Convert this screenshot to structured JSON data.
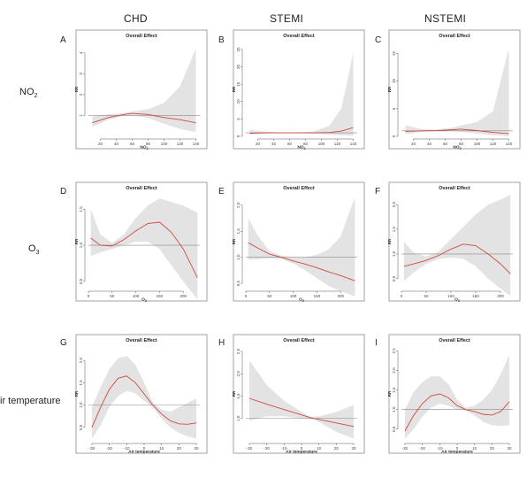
{
  "columns": [
    "CHD",
    "STEMI",
    "NSTEMI"
  ],
  "rows": [
    {
      "label": "NO",
      "sub": "2"
    },
    {
      "label": "O",
      "sub": "3"
    },
    {
      "label": "ir temperature",
      "sub": ""
    }
  ],
  "colors": {
    "estimate": "#d0493f",
    "band": "#e3e3e3",
    "reference": "#8a8a8a"
  },
  "chart_data": [
    {
      "type": "line",
      "letter": "A",
      "title": "Overall Effect",
      "xlabel": "NO",
      "xlabel_sub": "2",
      "ylabel": "RR",
      "xlim": [
        5,
        145
      ],
      "ylim": [
        0,
        4.5
      ],
      "xticks": [
        20,
        40,
        60,
        80,
        100,
        120,
        140
      ],
      "yticks": [
        1,
        2,
        3,
        4
      ],
      "series": [
        {
          "x": [
            10,
            30,
            50,
            60,
            80,
            100,
            120,
            140
          ],
          "y": [
            0.65,
            0.9,
            1.05,
            1.1,
            1.05,
            0.9,
            0.8,
            0.65
          ],
          "lower": [
            0.45,
            0.8,
            0.98,
            1.0,
            0.88,
            0.6,
            0.35,
            0.2
          ],
          "upper": [
            0.95,
            1.05,
            1.12,
            1.2,
            1.3,
            1.6,
            2.4,
            4.2
          ]
        }
      ]
    },
    {
      "type": "line",
      "letter": "B",
      "title": "Overall Effect",
      "xlabel": "NO",
      "xlabel_sub": "2",
      "ylabel": "RR",
      "xlim": [
        5,
        145
      ],
      "ylim": [
        0,
        27
      ],
      "xticks": [
        20,
        40,
        60,
        80,
        100,
        120,
        140
      ],
      "yticks": [
        0,
        5,
        10,
        15,
        20,
        25
      ],
      "series": [
        {
          "x": [
            10,
            30,
            50,
            70,
            90,
            110,
            125,
            140
          ],
          "y": [
            0.9,
            1.0,
            1.0,
            1.0,
            1.0,
            1.1,
            1.5,
            2.5
          ],
          "lower": [
            0.5,
            0.8,
            0.9,
            0.9,
            0.8,
            0.5,
            0.3,
            0.2
          ],
          "upper": [
            1.8,
            1.3,
            1.1,
            1.1,
            1.4,
            3.0,
            8.0,
            24.0
          ]
        }
      ]
    },
    {
      "type": "line",
      "letter": "C",
      "title": "Overall Effect",
      "xlabel": "NO",
      "xlabel_sub": "2",
      "ylabel": "RR",
      "xlim": [
        5,
        145
      ],
      "ylim": [
        0,
        17
      ],
      "xticks": [
        20,
        40,
        60,
        80,
        100,
        120,
        140
      ],
      "yticks": [
        0,
        5,
        10,
        15
      ],
      "series": [
        {
          "x": [
            10,
            30,
            50,
            70,
            80,
            100,
            120,
            140
          ],
          "y": [
            0.9,
            1.0,
            1.05,
            1.2,
            1.3,
            1.05,
            0.7,
            0.5
          ],
          "lower": [
            0.4,
            0.8,
            0.9,
            0.9,
            0.8,
            0.5,
            0.2,
            0.05
          ],
          "upper": [
            2.0,
            1.3,
            1.2,
            1.6,
            2.0,
            2.6,
            4.5,
            16.0
          ]
        }
      ]
    },
    {
      "type": "line",
      "letter": "D",
      "title": "Overall Effect",
      "xlabel": "O",
      "xlabel_sub": "3",
      "ylabel": "RR",
      "xlim": [
        0,
        235
      ],
      "ylim": [
        0.4,
        1.7
      ],
      "xticks": [
        0,
        50,
        100,
        150,
        200
      ],
      "yticks": [
        0.5,
        1.0,
        1.5
      ],
      "series": [
        {
          "x": [
            5,
            25,
            50,
            75,
            100,
            125,
            150,
            175,
            200,
            230
          ],
          "y": [
            1.1,
            1.0,
            0.99,
            1.08,
            1.2,
            1.3,
            1.32,
            1.18,
            0.95,
            0.55
          ],
          "lower": [
            0.85,
            0.9,
            0.95,
            1.0,
            1.05,
            1.05,
            0.95,
            0.72,
            0.5,
            0.25
          ],
          "upper": [
            1.5,
            1.15,
            1.03,
            1.15,
            1.38,
            1.55,
            1.65,
            1.6,
            1.55,
            1.45
          ]
        }
      ]
    },
    {
      "type": "line",
      "letter": "E",
      "title": "Overall Effect",
      "xlabel": "O",
      "xlabel_sub": "3",
      "ylabel": "RR",
      "xlim": [
        0,
        235
      ],
      "ylim": [
        0.4,
        2.2
      ],
      "xticks": [
        0,
        50,
        100,
        150,
        200
      ],
      "yticks": [
        0.5,
        1.0,
        1.5,
        2.0
      ],
      "series": [
        {
          "x": [
            5,
            25,
            50,
            75,
            100,
            125,
            150,
            175,
            200,
            230
          ],
          "y": [
            1.28,
            1.18,
            1.06,
            1.0,
            0.93,
            0.87,
            0.8,
            0.72,
            0.65,
            0.55
          ],
          "lower": [
            0.95,
            0.96,
            0.98,
            0.97,
            0.88,
            0.75,
            0.6,
            0.45,
            0.35,
            0.25
          ],
          "upper": [
            1.75,
            1.42,
            1.12,
            1.03,
            0.99,
            1.0,
            1.05,
            1.15,
            1.4,
            2.15
          ]
        }
      ]
    },
    {
      "type": "line",
      "letter": "F",
      "title": "Overall Effect",
      "xlabel": "O",
      "xlabel_sub": "3",
      "ylabel": "RR",
      "xlim": [
        0,
        225
      ],
      "ylim": [
        0.3,
        2.2
      ],
      "xticks": [
        0,
        50,
        100,
        150,
        200
      ],
      "yticks": [
        0.5,
        1.0,
        1.5,
        2.0
      ],
      "series": [
        {
          "x": [
            5,
            25,
            50,
            75,
            100,
            125,
            150,
            175,
            200,
            220
          ],
          "y": [
            0.75,
            0.8,
            0.87,
            0.97,
            1.1,
            1.2,
            1.17,
            1.0,
            0.8,
            0.6
          ],
          "lower": [
            0.45,
            0.63,
            0.8,
            0.9,
            0.93,
            0.9,
            0.75,
            0.5,
            0.3,
            0.15
          ],
          "upper": [
            1.25,
            1.03,
            0.95,
            1.05,
            1.3,
            1.55,
            1.8,
            2.0,
            2.1,
            2.2
          ]
        }
      ]
    },
    {
      "type": "line",
      "letter": "G",
      "title": "Overall Effect",
      "xlabel": "Air temperature",
      "xlabel_sub": "",
      "ylabel": "RR",
      "xlim": [
        -32,
        32
      ],
      "ylim": [
        0.2,
        2.3
      ],
      "xticks": [
        -30,
        -20,
        -10,
        0,
        10,
        20,
        30
      ],
      "yticks": [
        0.5,
        1.0,
        1.5,
        2.0
      ],
      "series": [
        {
          "x": [
            -30,
            -25,
            -20,
            -15,
            -10,
            -5,
            0,
            5,
            10,
            15,
            20,
            25,
            30
          ],
          "y": [
            0.5,
            0.95,
            1.35,
            1.6,
            1.65,
            1.5,
            1.25,
            1.0,
            0.8,
            0.65,
            0.58,
            0.57,
            0.6
          ],
          "lower": [
            0.25,
            0.55,
            0.95,
            1.2,
            1.32,
            1.26,
            1.1,
            0.95,
            0.7,
            0.5,
            0.38,
            0.3,
            0.25
          ],
          "upper": [
            0.95,
            1.4,
            1.8,
            2.05,
            2.1,
            1.9,
            1.5,
            1.05,
            0.9,
            0.85,
            0.95,
            1.05,
            1.15
          ]
        }
      ]
    },
    {
      "type": "line",
      "letter": "H",
      "title": "Overall Effect",
      "xlabel": "Air temperature",
      "xlabel_sub": "",
      "ylabel": "RR",
      "xlim": [
        -32,
        32
      ],
      "ylim": [
        0.5,
        2.6
      ],
      "xticks": [
        -30,
        -20,
        -10,
        0,
        10,
        20,
        30
      ],
      "yticks": [
        1.0,
        1.5,
        2.0,
        2.5
      ],
      "series": [
        {
          "x": [
            -30,
            -20,
            -10,
            0,
            5,
            10,
            20,
            30
          ],
          "y": [
            1.45,
            1.32,
            1.2,
            1.08,
            1.02,
            0.98,
            0.9,
            0.82
          ],
          "lower": [
            0.95,
            1.05,
            1.05,
            1.0,
            1.0,
            0.92,
            0.7,
            0.55
          ],
          "upper": [
            2.3,
            1.75,
            1.4,
            1.15,
            1.04,
            1.05,
            1.15,
            1.3
          ]
        }
      ]
    },
    {
      "type": "line",
      "letter": "I",
      "title": "Overall Effect",
      "xlabel": "Air temperature",
      "xlabel_sub": "",
      "ylabel": "RR",
      "xlim": [
        -32,
        32
      ],
      "ylim": [
        0.2,
        2.6
      ],
      "xticks": [
        -30,
        -20,
        -10,
        0,
        10,
        20,
        30
      ],
      "yticks": [
        0.5,
        1.0,
        1.5,
        2.0,
        2.5
      ],
      "series": [
        {
          "x": [
            -30,
            -25,
            -20,
            -15,
            -10,
            -5,
            0,
            5,
            10,
            15,
            20,
            25,
            30
          ],
          "y": [
            0.45,
            0.85,
            1.15,
            1.35,
            1.4,
            1.3,
            1.1,
            1.0,
            0.95,
            0.88,
            0.86,
            0.95,
            1.2
          ],
          "lower": [
            0.25,
            0.5,
            0.82,
            1.05,
            1.15,
            1.1,
            1.0,
            0.97,
            0.85,
            0.68,
            0.6,
            0.58,
            0.6
          ],
          "upper": [
            1.0,
            1.45,
            1.7,
            1.85,
            1.85,
            1.65,
            1.25,
            1.05,
            1.1,
            1.25,
            1.5,
            1.9,
            2.4
          ]
        }
      ]
    }
  ]
}
